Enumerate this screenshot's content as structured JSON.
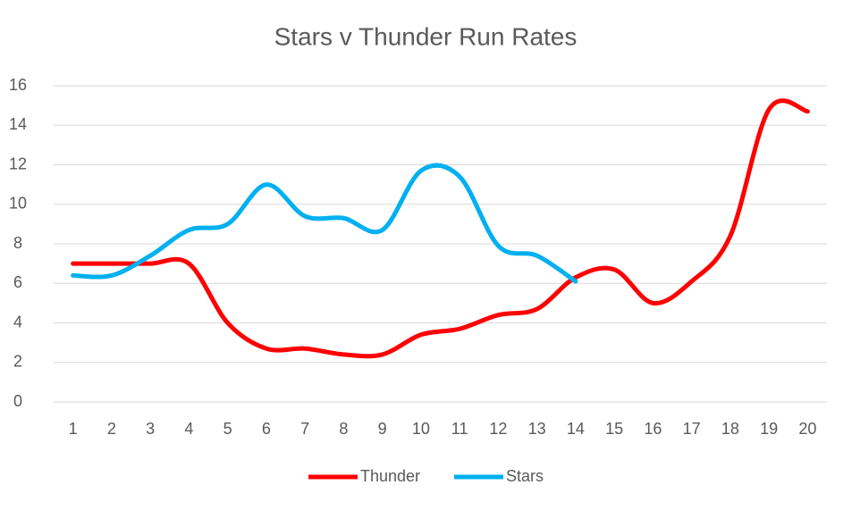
{
  "chart_data": {
    "type": "line",
    "title": "Stars v Thunder Run Rates",
    "categories": [
      "1",
      "2",
      "3",
      "4",
      "5",
      "6",
      "7",
      "8",
      "9",
      "10",
      "11",
      "12",
      "13",
      "14",
      "15",
      "16",
      "17",
      "18",
      "19",
      "20"
    ],
    "series": [
      {
        "name": "Thunder",
        "color": "#ff0000",
        "values": [
          7,
          7,
          7,
          7,
          4,
          2.7,
          2.7,
          2.4,
          2.4,
          3.4,
          3.7,
          4.4,
          4.7,
          6.3,
          6.7,
          5.0,
          6.1,
          8.4,
          14.8,
          14.7
        ]
      },
      {
        "name": "Stars",
        "color": "#00b0f0",
        "values": [
          6.4,
          6.4,
          7.4,
          8.7,
          9.0,
          11.0,
          9.4,
          9.3,
          8.7,
          11.7,
          11.4,
          7.9,
          7.4,
          6.1,
          null,
          null,
          null,
          null,
          null,
          null
        ]
      }
    ],
    "ylim": [
      0,
      16
    ],
    "yticks": [
      0,
      2,
      4,
      6,
      8,
      10,
      12,
      14,
      16
    ],
    "grid": true,
    "smooth": true,
    "legend": "bottom"
  }
}
